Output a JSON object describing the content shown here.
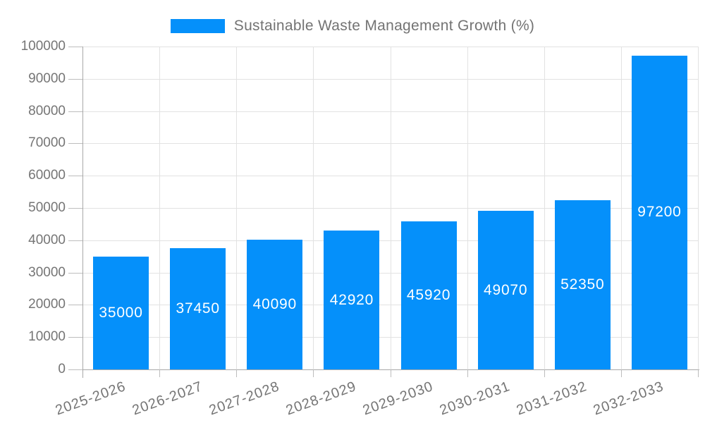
{
  "legend": {
    "label": "Sustainable Waste Management Growth (%)"
  },
  "colors": {
    "bar": "#0590fa",
    "grid": "#e2e2e2",
    "axis": "#a8a8a8",
    "tick": "#bdbdbd",
    "axis_text": "#757575",
    "legend_text": "#737373",
    "bar_label_text": "#ffffff"
  },
  "chart_data": {
    "type": "bar",
    "title": "Sustainable Waste Management Growth (%)",
    "categories": [
      "2025-2026",
      "2026-2027",
      "2027-2028",
      "2028-2029",
      "2029-2030",
      "2030-2031",
      "2031-2032",
      "2032-2033"
    ],
    "values": [
      35000,
      37450,
      40090,
      42920,
      45920,
      49070,
      52350,
      97200
    ],
    "bar_labels": [
      "35000",
      "37450",
      "40090",
      "42920",
      "45920",
      "49070",
      "52350",
      "97200"
    ],
    "xlabel": "",
    "ylabel": "",
    "ylim": [
      0,
      100000
    ],
    "y_ticks": [
      0,
      10000,
      20000,
      30000,
      40000,
      50000,
      60000,
      70000,
      80000,
      90000,
      100000
    ],
    "grid": true,
    "legend_position": "top-center",
    "x_label_rotation_deg": -20,
    "bar_value_labels_inside": true
  }
}
